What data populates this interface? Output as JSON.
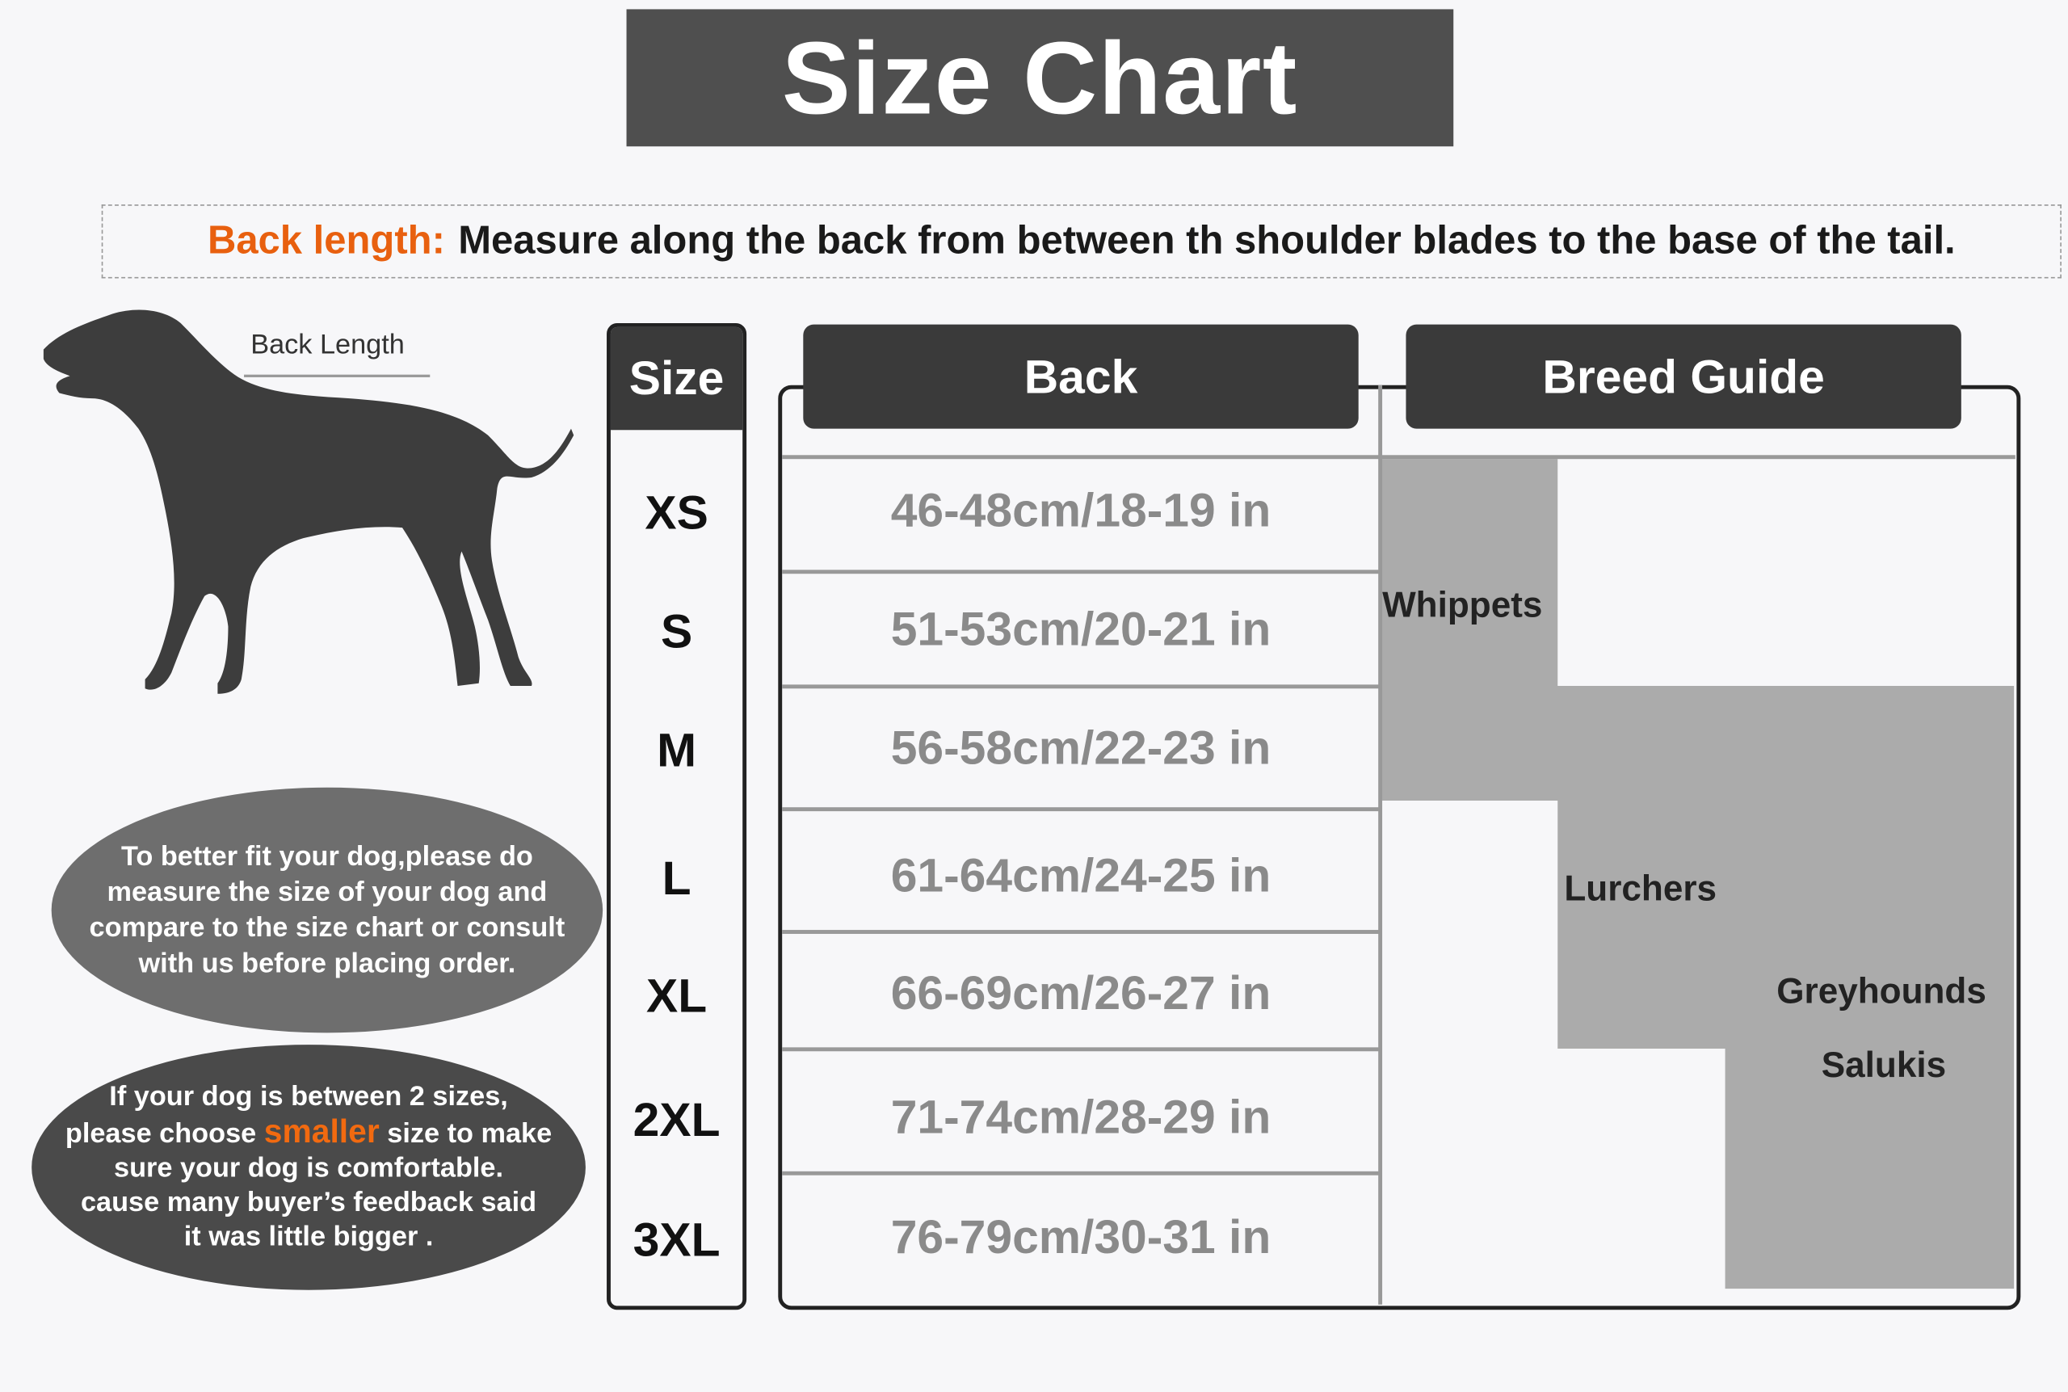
{
  "title": "Size Chart",
  "note": {
    "label": "Back length:",
    "text": "Measure along the back from between th shoulder blades to the base of the tail."
  },
  "dog": {
    "label": "Back Length"
  },
  "tips": {
    "fit": [
      "To better fit your dog,please do",
      "measure the size of your dog and",
      "compare to the size chart or consult",
      "with us before placing order."
    ],
    "between": {
      "line1": "If your dog is between 2 sizes,",
      "line2_pre": "please choose",
      "highlight": "smaller",
      "line2_post": "size to make",
      "line3": "sure your dog is comfortable.",
      "line4": "cause many buyer’s feedback said",
      "line5": "it was little bigger ."
    }
  },
  "colors": {
    "accent": "#e8600f",
    "header": "#3a3a3a",
    "breed_fill": "#ababab"
  },
  "table": {
    "headers": {
      "size": "Size",
      "back": "Back",
      "breed": "Breed Guide"
    },
    "rows": [
      {
        "size": "XS",
        "back": "46-48cm/18-19 in"
      },
      {
        "size": "S",
        "back": "51-53cm/20-21 in"
      },
      {
        "size": "M",
        "back": "56-58cm/22-23 in"
      },
      {
        "size": "L",
        "back": "61-64cm/24-25 in"
      },
      {
        "size": "XL",
        "back": "66-69cm/26-27 in"
      },
      {
        "size": "2XL",
        "back": "71-74cm/28-29 in"
      },
      {
        "size": "3XL",
        "back": "76-79cm/30-31 in"
      }
    ],
    "breeds": [
      {
        "name": "Whippets",
        "sizes": "XS-M"
      },
      {
        "name": "Lurchers",
        "sizes": "M-XL"
      },
      {
        "name": "Greyhounds",
        "sizes": "M-3XL"
      },
      {
        "name": "Salukis",
        "sizes": "M-3XL"
      }
    ]
  }
}
